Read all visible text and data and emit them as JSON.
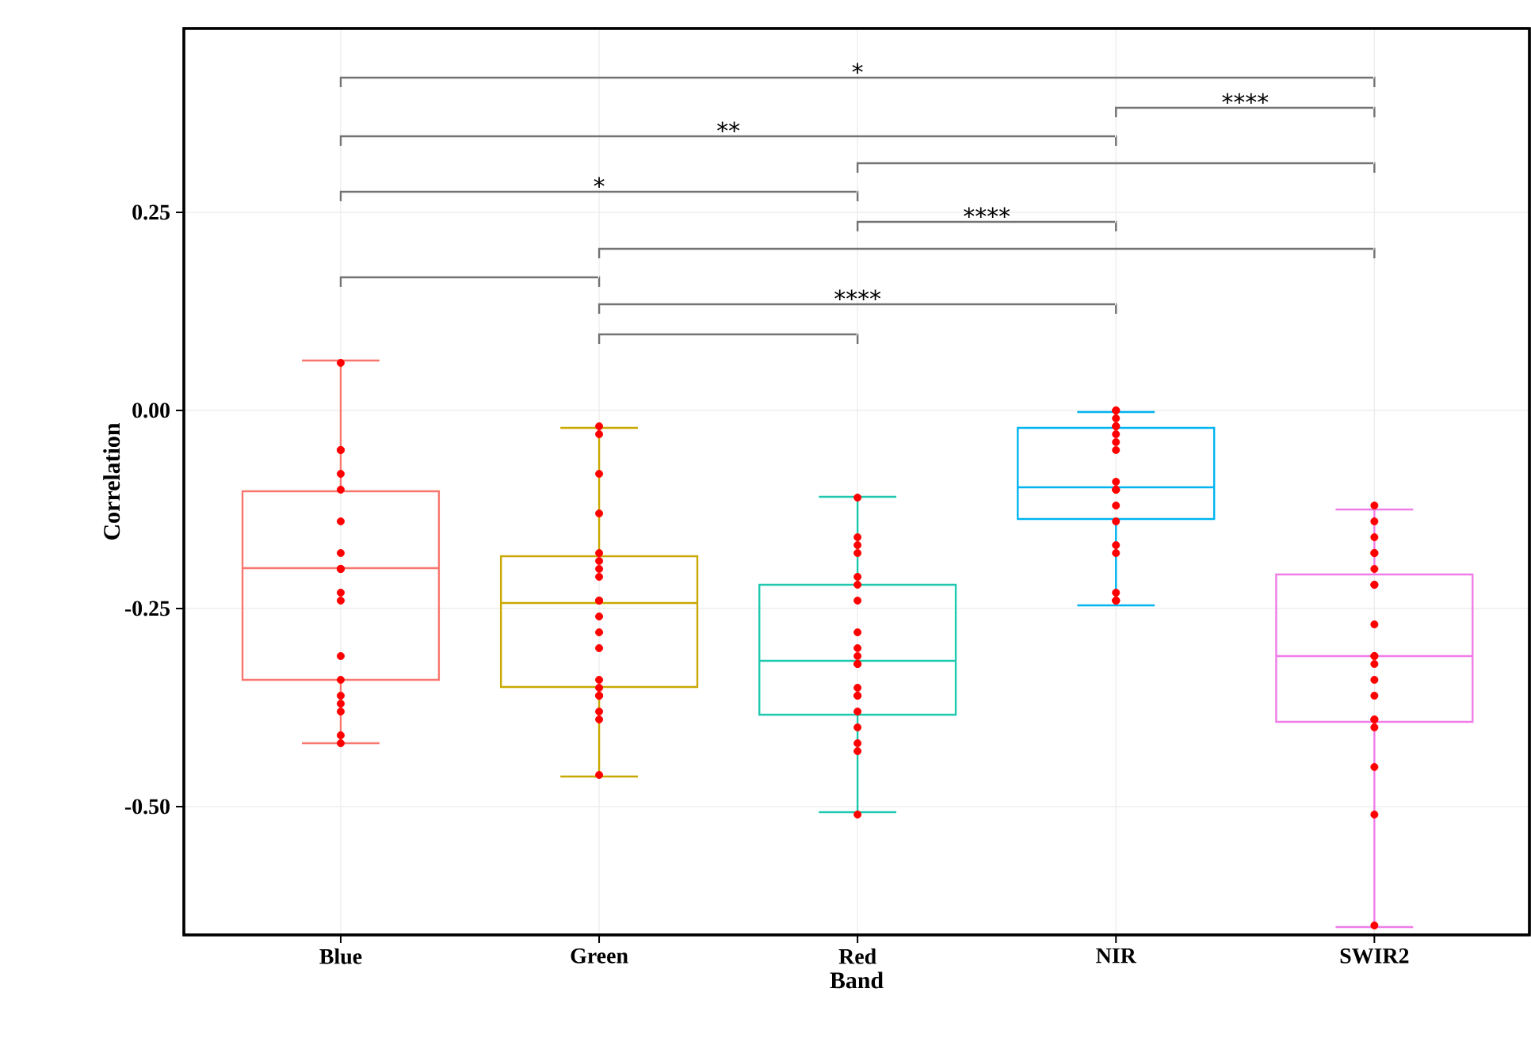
{
  "chart_data": {
    "type": "box",
    "xlabel": "Band",
    "ylabel": "Correlation",
    "categories": [
      "Blue",
      "Green",
      "Red",
      "NIR",
      "SWIR2"
    ],
    "boxes": [
      {
        "low": -0.42,
        "q1": -0.34,
        "median": -0.199,
        "q3": -0.102,
        "high": 0.063
      },
      {
        "low": -0.462,
        "q1": -0.349,
        "median": -0.243,
        "q3": -0.184,
        "high": -0.022
      },
      {
        "low": -0.507,
        "q1": -0.384,
        "median": -0.316,
        "q3": -0.22,
        "high": -0.109
      },
      {
        "low": -0.246,
        "q1": -0.137,
        "median": -0.097,
        "q3": -0.022,
        "high": -0.002
      },
      {
        "low": -0.652,
        "q1": -0.393,
        "median": -0.31,
        "q3": -0.207,
        "high": -0.125
      }
    ],
    "colors": [
      "#f8766d",
      "#c9a800",
      "#1ec9b0",
      "#00b4f0",
      "#f07ce8"
    ],
    "series": [
      {
        "type": "scatter",
        "color": "#ff0000",
        "x": [
          "Blue",
          "Blue",
          "Blue",
          "Blue",
          "Blue",
          "Blue",
          "Blue",
          "Blue",
          "Blue",
          "Blue",
          "Blue",
          "Blue",
          "Blue",
          "Blue",
          "Blue",
          "Blue",
          "Blue",
          "Blue",
          "Blue",
          "Green",
          "Green",
          "Green",
          "Green",
          "Green",
          "Green",
          "Green",
          "Green",
          "Green",
          "Green",
          "Green",
          "Green",
          "Green",
          "Green",
          "Green",
          "Green",
          "Green",
          "Green",
          "Green",
          "Green",
          "Red",
          "Red",
          "Red",
          "Red",
          "Red",
          "Red",
          "Red",
          "Red",
          "Red",
          "Red",
          "Red",
          "Red",
          "Red",
          "Red",
          "Red",
          "Red",
          "Red",
          "Red",
          "Red",
          "Red",
          "NIR",
          "NIR",
          "NIR",
          "NIR",
          "NIR",
          "NIR",
          "NIR",
          "NIR",
          "NIR",
          "NIR",
          "NIR",
          "NIR",
          "NIR",
          "NIR",
          "NIR",
          "NIR",
          "NIR",
          "NIR",
          "NIR",
          "NIR",
          "SWIR2",
          "SWIR2",
          "SWIR2",
          "SWIR2",
          "SWIR2",
          "SWIR2",
          "SWIR2",
          "SWIR2",
          "SWIR2",
          "SWIR2",
          "SWIR2",
          "SWIR2",
          "SWIR2",
          "SWIR2",
          "SWIR2",
          "SWIR2",
          "SWIR2",
          "SWIR2",
          "SWIR2",
          "SWIR2"
        ],
        "values": [
          0.06,
          -0.05,
          -0.05,
          -0.08,
          -0.1,
          -0.14,
          -0.18,
          -0.2,
          -0.2,
          -0.2,
          -0.23,
          -0.24,
          -0.31,
          -0.34,
          -0.36,
          -0.37,
          -0.38,
          -0.41,
          -0.42,
          -0.02,
          -0.03,
          -0.08,
          -0.13,
          -0.18,
          -0.19,
          -0.2,
          -0.21,
          -0.24,
          -0.24,
          -0.26,
          -0.28,
          -0.3,
          -0.34,
          -0.35,
          -0.36,
          -0.36,
          -0.38,
          -0.39,
          -0.46,
          -0.11,
          -0.16,
          -0.17,
          -0.18,
          -0.21,
          -0.22,
          -0.24,
          -0.28,
          -0.3,
          -0.31,
          -0.32,
          -0.32,
          -0.35,
          -0.36,
          -0.36,
          -0.38,
          -0.4,
          -0.42,
          -0.43,
          -0.51,
          0.0,
          0.0,
          -0.01,
          -0.02,
          -0.02,
          -0.03,
          -0.04,
          -0.05,
          -0.09,
          -0.1,
          -0.1,
          -0.1,
          -0.12,
          -0.14,
          -0.17,
          -0.18,
          -0.23,
          -0.24,
          -0.24,
          -0.24,
          -0.12,
          -0.14,
          -0.16,
          -0.18,
          -0.18,
          -0.2,
          -0.22,
          -0.22,
          -0.27,
          -0.31,
          -0.31,
          -0.32,
          -0.34,
          -0.36,
          -0.39,
          -0.4,
          -0.39,
          -0.45,
          -0.51,
          -0.65
        ]
      }
    ],
    "marker": "circle",
    "ylim": [
      -0.662,
      0.482
    ],
    "yticks": [
      {
        "value": -0.5,
        "label": "-0.50"
      },
      {
        "value": -0.25,
        "label": "-0.25"
      },
      {
        "value": 0,
        "label": "0.00"
      },
      {
        "value": 0.25,
        "label": "0.25"
      }
    ],
    "grid": true,
    "annotations": [
      "*",
      "****",
      "**",
      "*",
      "****",
      "****"
    ]
  }
}
